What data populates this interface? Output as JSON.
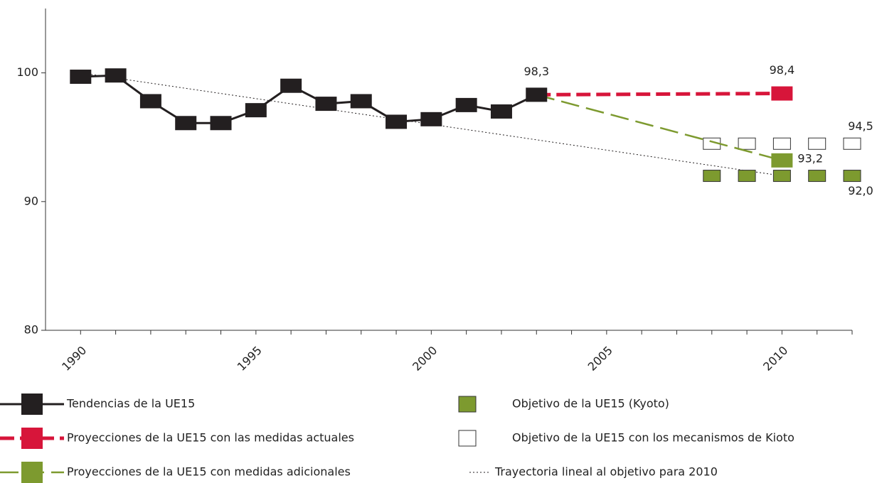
{
  "chart_data": {
    "type": "line",
    "xlim": [
      1989,
      2012
    ],
    "xticks": [
      1990,
      1995,
      2000,
      2005,
      2010
    ],
    "xminor_ticks": [
      1991,
      1992,
      1993,
      1994,
      1996,
      1997,
      1998,
      1999,
      2001,
      2002,
      2003,
      2004,
      2006,
      2007,
      2008,
      2009,
      2011,
      2012
    ],
    "ylim": [
      80,
      105
    ],
    "yticks": [
      80,
      90,
      100
    ],
    "series": [
      {
        "name": "Tendencias de la UE15",
        "color": "#231f20",
        "style": "solid",
        "marker": "all",
        "x": [
          1990,
          1991,
          1992,
          1993,
          1994,
          1995,
          1996,
          1997,
          1998,
          1999,
          2000,
          2001,
          2002,
          2003
        ],
        "values": [
          99.7,
          99.8,
          97.8,
          96.1,
          96.1,
          97.1,
          99.0,
          97.6,
          97.8,
          96.2,
          96.4,
          97.5,
          97.0,
          98.3
        ],
        "value_labels": [
          null,
          null,
          null,
          null,
          null,
          null,
          null,
          null,
          null,
          null,
          null,
          null,
          null,
          "98,3"
        ]
      },
      {
        "name": "Proyecciones de la UE15 con las medidas actuales",
        "color": "#d7153a",
        "style": "dashed",
        "marker": "end",
        "x": [
          2003,
          2010
        ],
        "values": [
          98.3,
          98.4
        ],
        "value_labels": [
          null,
          "98,4"
        ]
      },
      {
        "name": "Proyecciones de la UE15 con medidas adicionales",
        "color": "#7d9a2f",
        "style": "longdash",
        "marker": "end",
        "x": [
          2003,
          2010
        ],
        "values": [
          98.3,
          93.2
        ],
        "value_labels": [
          null,
          "93,2"
        ]
      },
      {
        "name": "Objetivo de la UE15 (Kyoto)",
        "color": "#7d9a2f",
        "style": "squares",
        "x": [
          2008,
          2009,
          2010,
          2011,
          2012
        ],
        "values": [
          92.0,
          92.0,
          92.0,
          92.0,
          92.0
        ],
        "value_labels": [
          null,
          null,
          null,
          null,
          "92,0"
        ]
      },
      {
        "name": "Objetivo de la UE15 con los mecanismos de Kioto",
        "color": "#ffffff",
        "style": "squares",
        "x": [
          2008,
          2009,
          2010,
          2011,
          2012
        ],
        "values": [
          94.5,
          94.5,
          94.5,
          94.5,
          94.5
        ],
        "value_labels": [
          null,
          null,
          null,
          null,
          "94,5"
        ]
      },
      {
        "name": "Trayectoria lineal al objetivo para 2010",
        "color": "#231f20",
        "style": "dotted",
        "marker": "none",
        "x": [
          1990,
          2010
        ],
        "values": [
          100,
          92
        ],
        "value_labels": [
          null,
          null
        ]
      }
    ]
  }
}
